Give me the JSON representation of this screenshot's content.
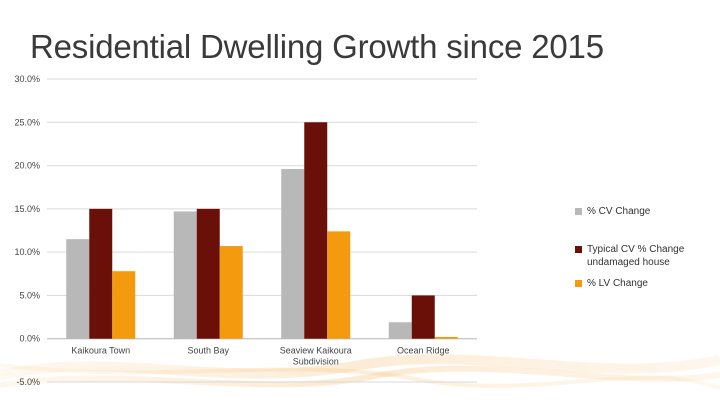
{
  "slide": {
    "title": "Residential Dwelling Growth since 2015"
  },
  "colors": {
    "cv": "#b8b8b8",
    "typical": "#6b1008",
    "lv": "#f39a0e",
    "grid": "#d9d9d9",
    "background_sparkle": "#f6c07a"
  },
  "chart_data": {
    "type": "bar",
    "title": "Residential Dwelling Growth since 2015",
    "xlabel": "",
    "ylabel": "",
    "ylim": [
      -5,
      30
    ],
    "yticks": [
      "30.0%",
      "25.0%",
      "20.0%",
      "15.0%",
      "10.0%",
      "5.0%",
      "0.0%",
      "-5.0%"
    ],
    "ytick_values": [
      30,
      25,
      20,
      15,
      10,
      5,
      0,
      -5
    ],
    "categories": [
      [
        "Kaikoura Town"
      ],
      [
        "South Bay"
      ],
      [
        "Seaview Kaikoura",
        "Subdivision"
      ],
      [
        "Ocean Ridge"
      ]
    ],
    "series": [
      {
        "name": "% CV Change",
        "color": "#b8b8b8",
        "values": [
          11.5,
          14.7,
          19.6,
          1.9
        ]
      },
      {
        "name": "Typical CV % Change undamaged house",
        "color": "#6b1008",
        "values": [
          15.0,
          15.0,
          25.0,
          5.0
        ]
      },
      {
        "name": "% LV Change",
        "color": "#f39a0e",
        "values": [
          7.8,
          10.7,
          12.4,
          0.2
        ]
      }
    ],
    "legend_position": "right",
    "grid": true
  }
}
